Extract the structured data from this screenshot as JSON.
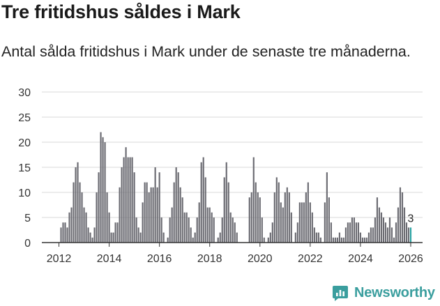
{
  "title": "Tre fritidshus såldes i Mark",
  "subtitle": "Antal sålda fritidshus i Mark under de senaste tre månaderna.",
  "brand": {
    "name": "Newsworthy",
    "icon": "newsworthy-logo-icon",
    "color": "#3a9e9e"
  },
  "colors": {
    "bar": "#6b6b72",
    "highlight": "#2aa3a3",
    "grid": "#d9d9d9",
    "axis": "#333333"
  },
  "chart_data": {
    "type": "bar",
    "ylim": [
      0,
      30
    ],
    "yticks": [
      0,
      5,
      10,
      15,
      20,
      25,
      30
    ],
    "xticks": [
      "2012",
      "2014",
      "2016",
      "2018",
      "2020",
      "2022",
      "2024",
      "2026"
    ],
    "grid": true,
    "x_start": "2011-01",
    "values": [
      0,
      0,
      0,
      0,
      0,
      0,
      0,
      0,
      0,
      0,
      0,
      0,
      0,
      3,
      4,
      4,
      3,
      6,
      7,
      12,
      15,
      16,
      12,
      10,
      7,
      6,
      3,
      2,
      1,
      3,
      10,
      14,
      22,
      21,
      20,
      10,
      6,
      2,
      2,
      4,
      4,
      11,
      15,
      17,
      19,
      17,
      17,
      17,
      14,
      5,
      3,
      2,
      8,
      12,
      12,
      10,
      11,
      11,
      15,
      11,
      14,
      5,
      2,
      0,
      1,
      5,
      7,
      12,
      15,
      14,
      11,
      9,
      6,
      6,
      5,
      3,
      1,
      2,
      5,
      8,
      16,
      17,
      13,
      7,
      7,
      6,
      5,
      0,
      1,
      2,
      5,
      13,
      16,
      12,
      6,
      5,
      4,
      2,
      0,
      0,
      0,
      0,
      0,
      9,
      10,
      17,
      12,
      10,
      9,
      5,
      1,
      0,
      1,
      2,
      4,
      10,
      13,
      12,
      8,
      7,
      10,
      11,
      10,
      6,
      0,
      2,
      4,
      8,
      8,
      8,
      10,
      12,
      8,
      6,
      3,
      2,
      2,
      1,
      0,
      8,
      14,
      9,
      4,
      1,
      1,
      1,
      2,
      1,
      1,
      3,
      4,
      4,
      5,
      5,
      4,
      4,
      2,
      1,
      1,
      1,
      2,
      3,
      3,
      5,
      9,
      7,
      6,
      5,
      4,
      3,
      5,
      3,
      1,
      4,
      7,
      11,
      10,
      7,
      4,
      3
    ],
    "highlight_index": 180,
    "highlight_value": 3,
    "highlight_label": "3"
  }
}
